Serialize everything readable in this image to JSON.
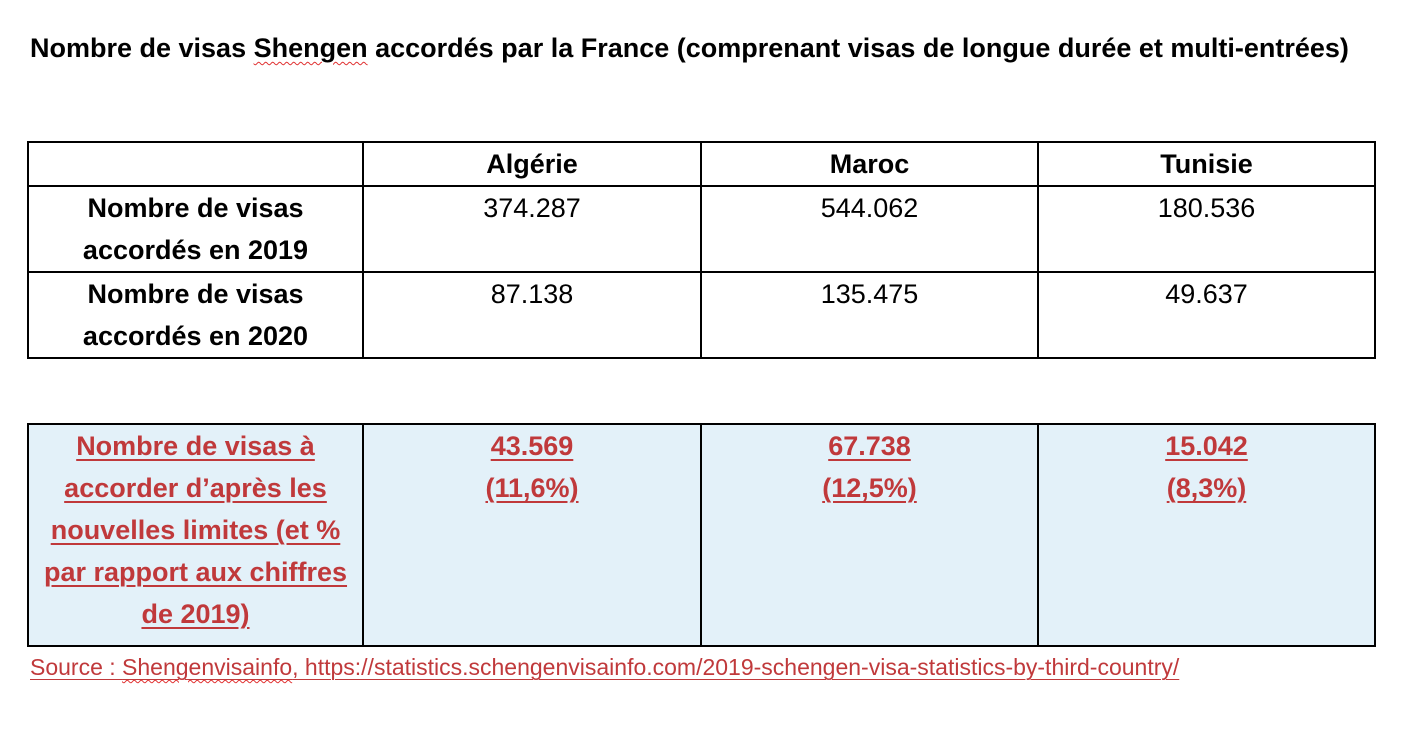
{
  "title": {
    "before": "Nombre de visas ",
    "marked_word": "Shengen",
    "after": " accordés par la France (comprenant visas de longue durée et multi-entrées)"
  },
  "table": {
    "columns": [
      "",
      "Algérie",
      "Maroc",
      "Tunisie"
    ],
    "rows": [
      {
        "label": "Nombre de visas accordés en 2019",
        "values": [
          "374.287",
          "544.062",
          "180.536"
        ]
      },
      {
        "label": "Nombre de visas accordés en 2020",
        "values": [
          "87.138",
          "135.475",
          "49.637"
        ]
      }
    ]
  },
  "limits": {
    "label": "Nombre de visas à accorder d’après les nouvelles limites (et % par rapport aux chiffres de 2019)",
    "values": [
      {
        "number": "43.569",
        "percent": "(11,6%)"
      },
      {
        "number": "67.738",
        "percent": "(12,5%)"
      },
      {
        "number": "15.042",
        "percent": "(8,3%)"
      }
    ]
  },
  "source": {
    "prefix": "Source : ",
    "marked_word": "Shengenvisainfo",
    "rest": ", https://statistics.schengenvisainfo.com/2019-schengen-visa-statistics-by-third-country/"
  },
  "colors": {
    "accent_red": "#c0393b",
    "highlight_background": "#e3f1f9",
    "spellcheck_squiggle": "#e03030"
  }
}
